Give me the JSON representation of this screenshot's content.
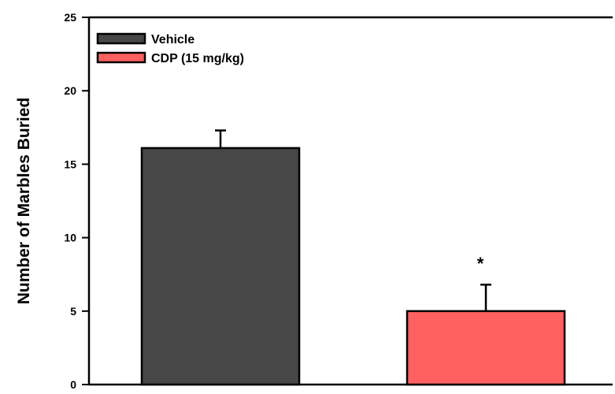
{
  "chart_data": {
    "type": "bar",
    "title": "",
    "xlabel": "",
    "ylabel": "Number of Marbles Buried",
    "ylim": [
      0,
      25
    ],
    "yticks": [
      0,
      5,
      10,
      15,
      20,
      25
    ],
    "grid": false,
    "legend_position": "top-left",
    "series": [
      {
        "name": "Vehicle",
        "value": 16.1,
        "error": 1.2,
        "color": "#474747",
        "annotation": ""
      },
      {
        "name": "CDP (15 mg/kg)",
        "value": 5.0,
        "error": 1.8,
        "color": "#ff6060",
        "annotation": "*"
      }
    ]
  }
}
